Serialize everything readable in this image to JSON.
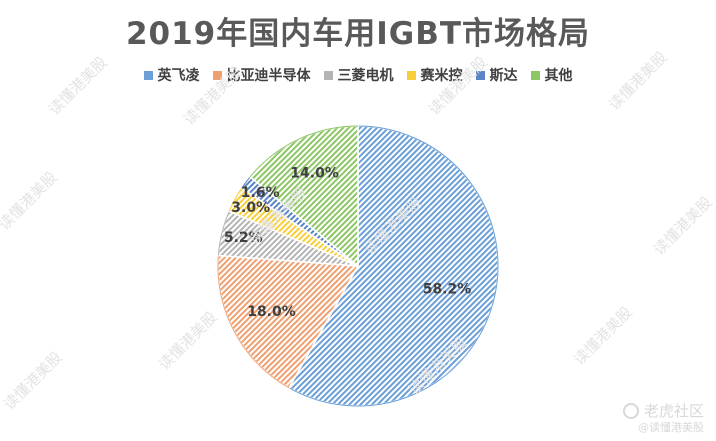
{
  "chart_data": {
    "type": "pie",
    "title": "2019年国内车用IGBT市场格局",
    "categories": [
      "英飞凌",
      "比亚迪半导体",
      "三菱电机",
      "赛米控",
      "斯达",
      "其他"
    ],
    "values": [
      58.2,
      18.0,
      5.2,
      3.0,
      1.6,
      14.0
    ],
    "value_labels": [
      "58.2%",
      "18.0%",
      "5.2%",
      "3.0%",
      "1.6%",
      "14.0%"
    ],
    "colors": [
      "#6a9fd8",
      "#f0a070",
      "#b4b4b4",
      "#f7cf3a",
      "#5b84c8",
      "#8dc665"
    ],
    "legend_position": "top",
    "start_angle_deg": 0,
    "direction": "clockwise",
    "fill_pattern": "diagonal-hatch"
  },
  "watermark": {
    "text": "读懂港美股",
    "brand_name": "老虎社区",
    "brand_handle": "@读懂港美股"
  }
}
